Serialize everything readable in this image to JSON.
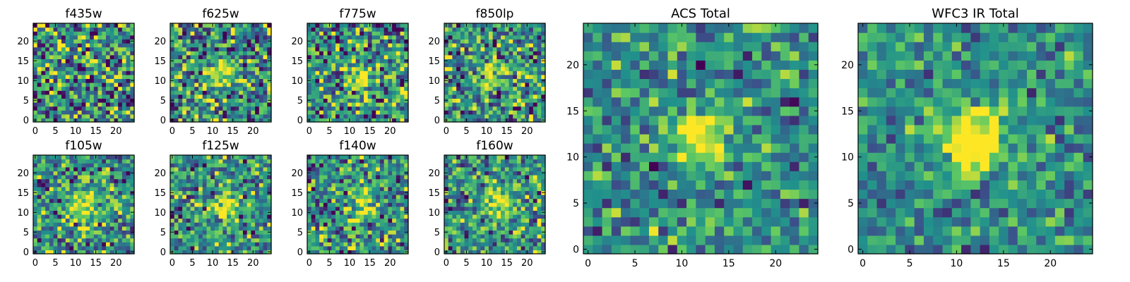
{
  "chart_data": [
    {
      "type": "heatmap",
      "title": "f435w",
      "grid_size": 25,
      "x_ticks": [
        "0",
        "5",
        "10",
        "15",
        "20"
      ],
      "y_ticks": [
        "0",
        "5",
        "10",
        "15",
        "20"
      ],
      "xlabel": "",
      "ylabel": "",
      "noise": 0.92,
      "peak": 0.0,
      "peak_center": [
        12,
        10
      ],
      "peak_sigma": 3.0,
      "seed": 11
    },
    {
      "type": "heatmap",
      "title": "f625w",
      "grid_size": 25,
      "x_ticks": [
        "0",
        "5",
        "10",
        "15",
        "20"
      ],
      "y_ticks": [
        "0",
        "5",
        "10",
        "15",
        "20"
      ],
      "xlabel": "",
      "ylabel": "",
      "noise": 0.85,
      "peak": 0.55,
      "peak_center": [
        12,
        12
      ],
      "peak_sigma": 2.2,
      "seed": 23
    },
    {
      "type": "heatmap",
      "title": "f775w",
      "grid_size": 25,
      "x_ticks": [
        "0",
        "5",
        "10",
        "15",
        "20"
      ],
      "y_ticks": [
        "0",
        "5",
        "10",
        "15",
        "20"
      ],
      "xlabel": "",
      "ylabel": "",
      "noise": 0.85,
      "peak": 0.5,
      "peak_center": [
        13,
        11
      ],
      "peak_sigma": 2.2,
      "seed": 37
    },
    {
      "type": "heatmap",
      "title": "f850lp",
      "grid_size": 25,
      "x_ticks": [
        "0",
        "5",
        "10",
        "15",
        "20"
      ],
      "y_ticks": [
        "0",
        "5",
        "10",
        "15",
        "20"
      ],
      "xlabel": "",
      "ylabel": "",
      "noise": 0.85,
      "peak": 0.45,
      "peak_center": [
        12,
        12
      ],
      "peak_sigma": 2.4,
      "seed": 41
    },
    {
      "type": "heatmap",
      "title": "f105w",
      "grid_size": 25,
      "x_ticks": [
        "0",
        "5",
        "10",
        "15",
        "20"
      ],
      "y_ticks": [
        "0",
        "5",
        "10",
        "15",
        "20"
      ],
      "xlabel": "",
      "ylabel": "",
      "noise": 0.7,
      "peak": 0.45,
      "peak_center": [
        12,
        11
      ],
      "peak_sigma": 3.0,
      "seed": 53
    },
    {
      "type": "heatmap",
      "title": "f125w",
      "grid_size": 25,
      "x_ticks": [
        "0",
        "5",
        "10",
        "15",
        "20"
      ],
      "y_ticks": [
        "0",
        "5",
        "10",
        "15",
        "20"
      ],
      "xlabel": "",
      "ylabel": "",
      "noise": 0.7,
      "peak": 0.5,
      "peak_center": [
        13,
        11
      ],
      "peak_sigma": 2.6,
      "seed": 67
    },
    {
      "type": "heatmap",
      "title": "f140w",
      "grid_size": 25,
      "x_ticks": [
        "0",
        "5",
        "10",
        "15",
        "20"
      ],
      "y_ticks": [
        "0",
        "5",
        "10",
        "15",
        "20"
      ],
      "xlabel": "",
      "ylabel": "",
      "noise": 0.75,
      "peak": 0.4,
      "peak_center": [
        13,
        12
      ],
      "peak_sigma": 3.0,
      "seed": 71
    },
    {
      "type": "heatmap",
      "title": "f160w",
      "grid_size": 25,
      "x_ticks": [
        "0",
        "5",
        "10",
        "15",
        "20"
      ],
      "y_ticks": [
        "0",
        "5",
        "10",
        "15",
        "20"
      ],
      "xlabel": "",
      "ylabel": "",
      "noise": 0.7,
      "peak": 0.55,
      "peak_center": [
        13,
        12
      ],
      "peak_sigma": 2.8,
      "seed": 83
    },
    {
      "type": "heatmap",
      "title": "ACS Total",
      "grid_size": 25,
      "x_ticks": [
        "0",
        "5",
        "10",
        "15",
        "20"
      ],
      "y_ticks": [
        "0",
        "5",
        "10",
        "15",
        "20"
      ],
      "xlabel": "",
      "ylabel": "",
      "noise": 0.55,
      "peak": 0.7,
      "peak_center": [
        12,
        12
      ],
      "peak_sigma": 1.9,
      "seed": 97
    },
    {
      "type": "heatmap",
      "title": "WFC3 IR Total",
      "grid_size": 25,
      "x_ticks": [
        "0",
        "5",
        "10",
        "15",
        "20"
      ],
      "y_ticks": [
        "0",
        "5",
        "10",
        "15",
        "20"
      ],
      "xlabel": "",
      "ylabel": "",
      "noise": 0.5,
      "peak": 0.75,
      "peak_center": [
        12,
        12
      ],
      "peak_sigma": 2.2,
      "seed": 101
    }
  ],
  "colormap": {
    "name": "viridis",
    "stops": [
      "#440154",
      "#3b528b",
      "#21918c",
      "#5ec962",
      "#fde725"
    ]
  }
}
